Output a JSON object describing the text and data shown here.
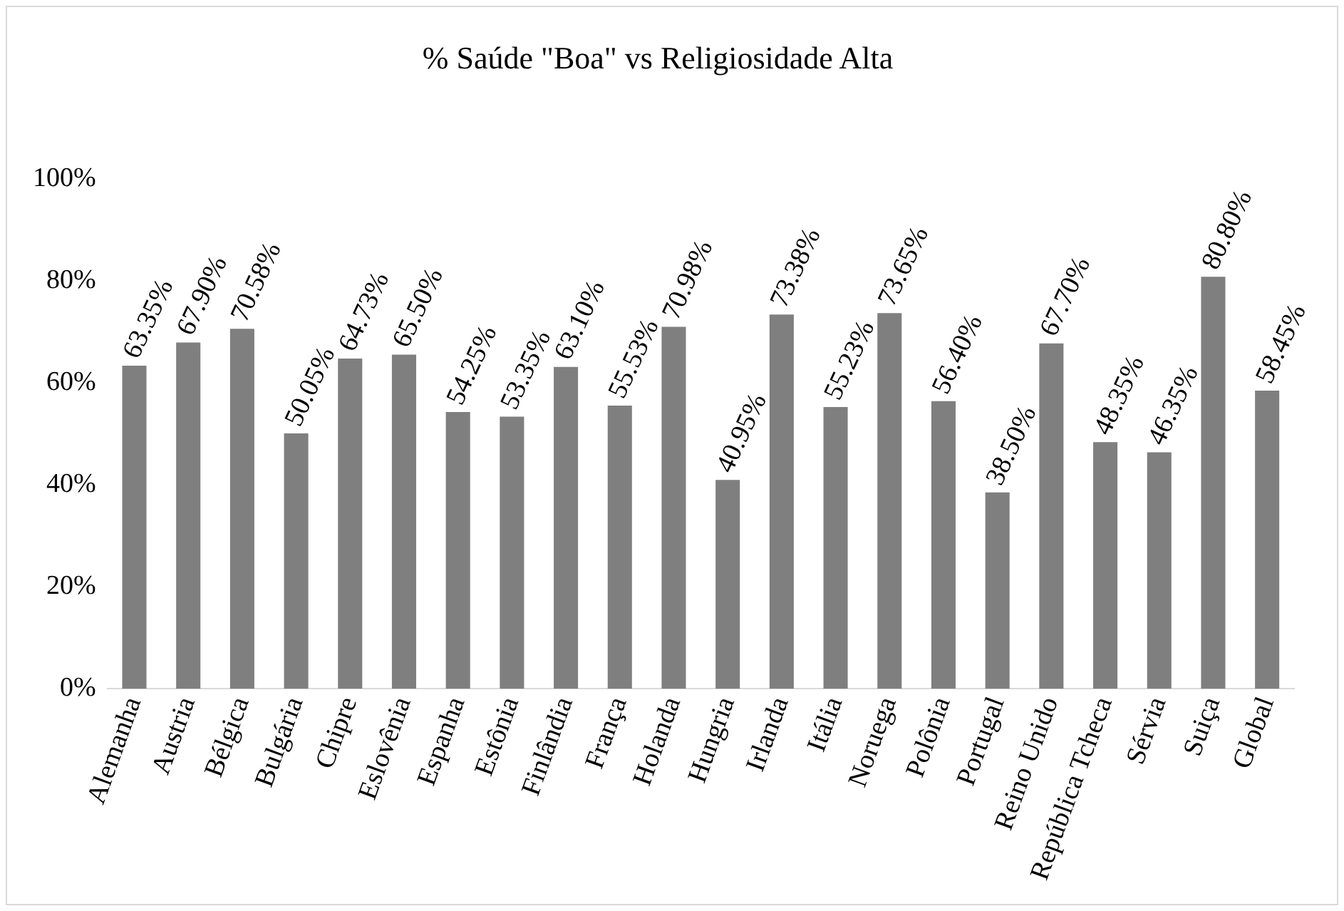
{
  "chart_data": {
    "type": "bar",
    "title": "% Saúde \"Boa\" vs Religiosidade Alta",
    "categories": [
      "Alemanha",
      "Austria",
      "Bélgica",
      "Bulgária",
      "Chipre",
      "Eslovênia",
      "Espanha",
      "Estônia",
      "Finlândia",
      "França",
      "Holanda",
      "Hungria",
      "Irlanda",
      "Itália",
      "Noruega",
      "Polônia",
      "Portugal",
      "Reino Unido",
      "República Tcheca",
      "Sérvia",
      "Suiça",
      "Global"
    ],
    "values": [
      63.35,
      67.9,
      70.58,
      50.05,
      64.73,
      65.5,
      54.25,
      53.35,
      63.1,
      55.53,
      70.98,
      40.95,
      73.38,
      55.23,
      73.65,
      56.4,
      38.5,
      67.7,
      48.35,
      46.35,
      80.8,
      58.45
    ],
    "value_labels": [
      "63.35%",
      "67.90%",
      "70.58%",
      "50.05%",
      "64.73%",
      "65.50%",
      "54.25%",
      "53.35%",
      "63.10%",
      "55.53%",
      "70.98%",
      "40.95%",
      "73.38%",
      "55.23%",
      "73.65%",
      "56.40%",
      "38.50%",
      "67.70%",
      "48.35%",
      "46.35%",
      "80.80%",
      "58.45%"
    ],
    "color": "#7f7f7f",
    "ylim": [
      0,
      100
    ],
    "yticks": [
      {
        "value": 0,
        "label": "0%"
      },
      {
        "value": 20,
        "label": "20%"
      },
      {
        "value": 40,
        "label": "40%"
      },
      {
        "value": 60,
        "label": "60%"
      },
      {
        "value": 80,
        "label": "80%"
      },
      {
        "value": 100,
        "label": "100%"
      }
    ],
    "grid": false,
    "legend": false
  }
}
